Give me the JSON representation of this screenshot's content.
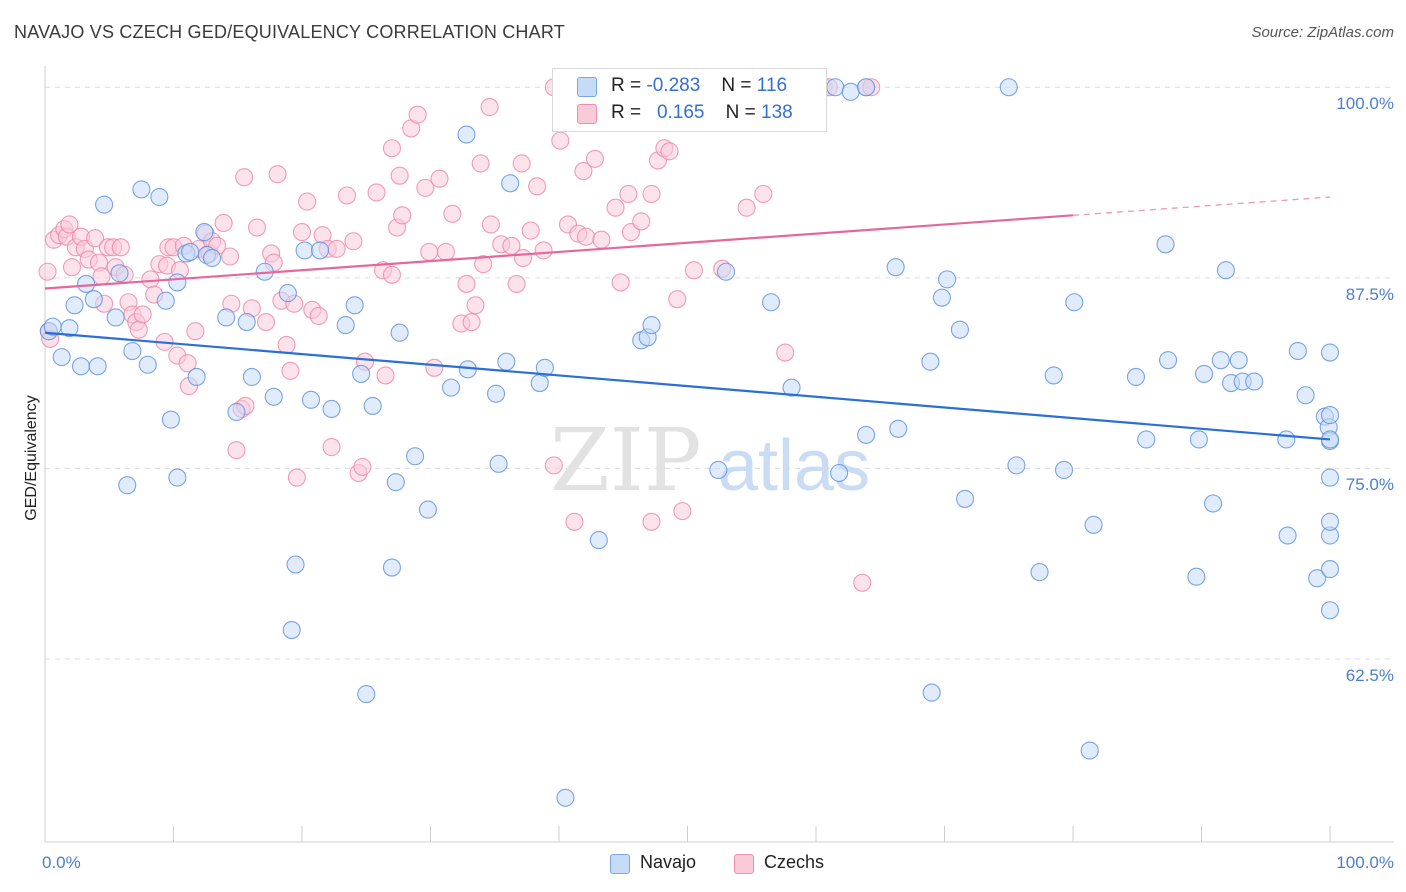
{
  "title": "NAVAJO VS CZECH GED/EQUIVALENCY CORRELATION CHART",
  "source": "Source: ZipAtlas.com",
  "watermark": {
    "part1": "ZIP",
    "part2": "atlas"
  },
  "legend_stats": [
    {
      "r_label": "R =",
      "r_value": "-0.283",
      "n_label": "N =",
      "n_value": "116",
      "color": "#7aa7e6",
      "fill": "#c6dbf7"
    },
    {
      "r_label": "R =",
      "r_value": "0.165",
      "n_label": "N =",
      "n_value": "138",
      "color": "#ef8fb0",
      "fill": "#f9cbd9"
    }
  ],
  "bottom_legend": [
    "Navajo",
    "Czechs"
  ],
  "chart_data": {
    "type": "scatter",
    "title": "NAVAJO VS CZECH GED/EQUIVALENCY CORRELATION CHART",
    "xlabel": "",
    "ylabel": "GED/Equivalency",
    "xlim": [
      0,
      100
    ],
    "ylim": [
      50.5,
      101
    ],
    "y_ticks": [
      {
        "value": 100,
        "label": "100.0%"
      },
      {
        "value": 87.5,
        "label": "87.5%"
      },
      {
        "value": 75,
        "label": "75.0%"
      },
      {
        "value": 62.5,
        "label": "62.5%"
      }
    ],
    "x_ticks": [
      {
        "value": 0,
        "label": "0.0%"
      },
      {
        "value": 100,
        "label": "100.0%"
      }
    ],
    "grid": true,
    "series": [
      {
        "name": "Navajo",
        "color": "#5b8fde",
        "fill": "#c6dbf7",
        "trend": {
          "x": [
            0,
            100
          ],
          "y": [
            83.9,
            76.9
          ],
          "dashed_after": null
        },
        "points": [
          [
            0.3,
            84
          ],
          [
            0.6,
            84.3
          ],
          [
            1.3,
            82.3
          ],
          [
            1.9,
            84.2
          ],
          [
            2.3,
            85.7
          ],
          [
            2.8,
            81.7
          ],
          [
            3.2,
            87.1
          ],
          [
            3.8,
            86.1
          ],
          [
            4.1,
            81.7
          ],
          [
            4.6,
            92.3
          ],
          [
            5.5,
            84.9
          ],
          [
            5.8,
            87.8
          ],
          [
            6.4,
            73.9
          ],
          [
            6.8,
            82.7
          ],
          [
            7.5,
            93.3
          ],
          [
            8,
            81.8
          ],
          [
            8.9,
            92.8
          ],
          [
            9.4,
            86
          ],
          [
            9.8,
            78.2
          ],
          [
            10.3,
            74.4
          ],
          [
            10.3,
            87.2
          ],
          [
            11,
            89.1
          ],
          [
            11.3,
            89.2
          ],
          [
            11.8,
            81
          ],
          [
            12.4,
            90.5
          ],
          [
            12.6,
            89
          ],
          [
            13,
            88.8
          ],
          [
            14.1,
            84.9
          ],
          [
            14.9,
            78.7
          ],
          [
            15.7,
            84.6
          ],
          [
            16.1,
            81
          ],
          [
            17.1,
            87.9
          ],
          [
            17.8,
            79.7
          ],
          [
            18.9,
            86.5
          ],
          [
            19.2,
            64.4
          ],
          [
            19.5,
            68.7
          ],
          [
            20.2,
            89.3
          ],
          [
            20.7,
            79.5
          ],
          [
            21.4,
            89.3
          ],
          [
            22.3,
            78.9
          ],
          [
            23.4,
            84.4
          ],
          [
            24.1,
            85.7
          ],
          [
            24.6,
            81.2
          ],
          [
            25,
            60.2
          ],
          [
            25.5,
            79.1
          ],
          [
            27,
            68.5
          ],
          [
            27.3,
            74.1
          ],
          [
            27.6,
            83.9
          ],
          [
            28.8,
            75.8
          ],
          [
            29.8,
            72.3
          ],
          [
            31.6,
            80.3
          ],
          [
            32.8,
            96.9
          ],
          [
            32.9,
            81.5
          ],
          [
            35.1,
            79.9
          ],
          [
            35.3,
            75.3
          ],
          [
            35.9,
            82
          ],
          [
            36.2,
            93.7
          ],
          [
            38.5,
            80.6
          ],
          [
            38.9,
            81.6
          ],
          [
            40.5,
            53.4
          ],
          [
            43.1,
            70.3
          ],
          [
            46.4,
            83.4
          ],
          [
            46.9,
            83.6
          ],
          [
            47.2,
            84.4
          ],
          [
            52.3,
            100
          ],
          [
            52.4,
            74.9
          ],
          [
            53,
            87.9
          ],
          [
            56.5,
            85.9
          ],
          [
            58.1,
            80.3
          ],
          [
            61.5,
            100
          ],
          [
            61.8,
            74.7
          ],
          [
            62.7,
            99.7
          ],
          [
            63.9,
            100
          ],
          [
            63.9,
            77.2
          ],
          [
            66.2,
            88.2
          ],
          [
            66.4,
            77.6
          ],
          [
            68.9,
            82
          ],
          [
            69,
            60.3
          ],
          [
            69.8,
            86.2
          ],
          [
            70.2,
            87.4
          ],
          [
            71.2,
            84.1
          ],
          [
            71.6,
            73
          ],
          [
            75,
            100
          ],
          [
            75.6,
            75.2
          ],
          [
            77.4,
            68.2
          ],
          [
            78.5,
            81.1
          ],
          [
            79.3,
            74.9
          ],
          [
            80.1,
            85.9
          ],
          [
            81.3,
            56.5
          ],
          [
            81.6,
            71.3
          ],
          [
            84.9,
            81
          ],
          [
            85.7,
            76.9
          ],
          [
            87.2,
            89.7
          ],
          [
            87.4,
            82.1
          ],
          [
            89.6,
            67.9
          ],
          [
            89.8,
            76.9
          ],
          [
            90.2,
            81.2
          ],
          [
            90.9,
            72.7
          ],
          [
            91.5,
            82.1
          ],
          [
            91.9,
            88
          ],
          [
            92.3,
            80.6
          ],
          [
            92.9,
            82.1
          ],
          [
            93.2,
            80.7
          ],
          [
            94.1,
            80.7
          ],
          [
            96.6,
            76.9
          ],
          [
            96.7,
            70.6
          ],
          [
            97.5,
            82.7
          ],
          [
            98.1,
            79.8
          ],
          [
            99,
            67.8
          ],
          [
            99.6,
            78.4
          ],
          [
            99.9,
            77.7
          ],
          [
            100,
            82.6
          ],
          [
            100,
            76.8
          ],
          [
            100,
            74.4
          ],
          [
            100,
            70.6
          ],
          [
            100,
            68.4
          ],
          [
            100,
            65.7
          ],
          [
            100,
            78.5
          ],
          [
            100,
            71.5
          ],
          [
            100,
            76.9
          ]
        ]
      },
      {
        "name": "Czechs",
        "color": "#ee85a8",
        "fill": "#f9cbd9",
        "trend": {
          "x": [
            0,
            80,
            100
          ],
          "y": [
            86.8,
            91.6,
            92.8
          ],
          "dashed_after": 80
        },
        "points": [
          [
            0.2,
            87.9
          ],
          [
            0.3,
            84
          ],
          [
            0.4,
            83.5
          ],
          [
            0.7,
            90
          ],
          [
            1.1,
            90.3
          ],
          [
            1.5,
            90.7
          ],
          [
            1.7,
            90.2
          ],
          [
            1.9,
            91
          ],
          [
            2.1,
            88.2
          ],
          [
            2.4,
            89.5
          ],
          [
            2.8,
            90.2
          ],
          [
            3.1,
            89.4
          ],
          [
            3.4,
            88.7
          ],
          [
            3.9,
            90.1
          ],
          [
            4.2,
            88.5
          ],
          [
            4.4,
            87.6
          ],
          [
            4.6,
            85.8
          ],
          [
            4.9,
            89.5
          ],
          [
            5.3,
            89.5
          ],
          [
            5.5,
            88.2
          ],
          [
            5.9,
            89.5
          ],
          [
            6.2,
            87.7
          ],
          [
            6.5,
            85.9
          ],
          [
            6.8,
            85.1
          ],
          [
            7.1,
            84.6
          ],
          [
            7.3,
            84.1
          ],
          [
            7.6,
            85.1
          ],
          [
            8.2,
            87.4
          ],
          [
            8.5,
            86.4
          ],
          [
            8.9,
            88.4
          ],
          [
            9.3,
            83.3
          ],
          [
            9.5,
            88.3
          ],
          [
            9.6,
            89.5
          ],
          [
            10,
            89.5
          ],
          [
            10.3,
            82.4
          ],
          [
            10.5,
            88
          ],
          [
            10.8,
            89.6
          ],
          [
            11.1,
            81.9
          ],
          [
            11.2,
            80.4
          ],
          [
            11.7,
            84
          ],
          [
            12,
            89.4
          ],
          [
            12.5,
            90.4
          ],
          [
            12.8,
            89.1
          ],
          [
            13,
            89.9
          ],
          [
            13.4,
            89.6
          ],
          [
            13.9,
            91.1
          ],
          [
            14.4,
            88.9
          ],
          [
            14.5,
            85.8
          ],
          [
            14.9,
            76.2
          ],
          [
            15.3,
            78.9
          ],
          [
            15.5,
            94.1
          ],
          [
            15.6,
            79.1
          ],
          [
            16.1,
            85.5
          ],
          [
            16.5,
            90.8
          ],
          [
            17.2,
            84.6
          ],
          [
            17.6,
            89.1
          ],
          [
            17.8,
            88.5
          ],
          [
            18.1,
            94.3
          ],
          [
            18.4,
            86
          ],
          [
            18.8,
            83.1
          ],
          [
            19.1,
            81.4
          ],
          [
            19.4,
            85.8
          ],
          [
            19.6,
            74.4
          ],
          [
            20,
            90.5
          ],
          [
            20.4,
            92.5
          ],
          [
            20.8,
            85.4
          ],
          [
            21.3,
            85
          ],
          [
            21.6,
            90.3
          ],
          [
            22,
            89.4
          ],
          [
            22.3,
            76.4
          ],
          [
            22.7,
            89.4
          ],
          [
            23.5,
            92.9
          ],
          [
            24,
            89.9
          ],
          [
            24.4,
            74.7
          ],
          [
            24.7,
            75.1
          ],
          [
            24.9,
            82
          ],
          [
            25.8,
            93.1
          ],
          [
            26.3,
            88
          ],
          [
            26.5,
            81.1
          ],
          [
            27,
            87.7
          ],
          [
            27.4,
            90.8
          ],
          [
            27.6,
            94.2
          ],
          [
            27.8,
            91.6
          ],
          [
            28.5,
            97.3
          ],
          [
            29,
            98.2
          ],
          [
            29.6,
            93.4
          ],
          [
            29.9,
            89.2
          ],
          [
            30.3,
            81.6
          ],
          [
            30.7,
            94
          ],
          [
            31.2,
            89.2
          ],
          [
            31.7,
            91.7
          ],
          [
            32.4,
            84.5
          ],
          [
            32.8,
            87.1
          ],
          [
            33.2,
            84.6
          ],
          [
            33.5,
            85.7
          ],
          [
            33.9,
            95
          ],
          [
            34.1,
            88.4
          ],
          [
            34.6,
            98.7
          ],
          [
            34.7,
            91
          ],
          [
            35.5,
            89.7
          ],
          [
            36.3,
            89.6
          ],
          [
            36.7,
            87.1
          ],
          [
            37.1,
            95
          ],
          [
            37.8,
            90.6
          ],
          [
            38.3,
            93.5
          ],
          [
            38.8,
            89.3
          ],
          [
            39.6,
            100
          ],
          [
            39.6,
            75.2
          ],
          [
            40.1,
            96.5
          ],
          [
            40.7,
            91
          ],
          [
            41.2,
            71.5
          ],
          [
            41.5,
            90.4
          ],
          [
            41.9,
            94.5
          ],
          [
            42.1,
            90.2
          ],
          [
            42.8,
            95.3
          ],
          [
            43.3,
            90
          ],
          [
            44.4,
            92.1
          ],
          [
            44.8,
            87.2
          ],
          [
            45.4,
            93
          ],
          [
            45.6,
            90.5
          ],
          [
            46.4,
            91.2
          ],
          [
            47.2,
            71.5
          ],
          [
            47.7,
            95.2
          ],
          [
            48.2,
            96
          ],
          [
            48.6,
            95.8
          ],
          [
            49.2,
            86.1
          ],
          [
            49.6,
            72.2
          ],
          [
            52.7,
            88.1
          ],
          [
            54.6,
            92.1
          ],
          [
            55.9,
            93
          ],
          [
            57.6,
            82.6
          ],
          [
            60.6,
            100
          ],
          [
            61,
            100
          ],
          [
            63.6,
            67.5
          ],
          [
            63.9,
            100
          ],
          [
            64.3,
            100
          ],
          [
            27,
            96
          ],
          [
            37.2,
            88.8
          ],
          [
            47.2,
            93
          ],
          [
            50.5,
            88
          ]
        ]
      }
    ]
  }
}
